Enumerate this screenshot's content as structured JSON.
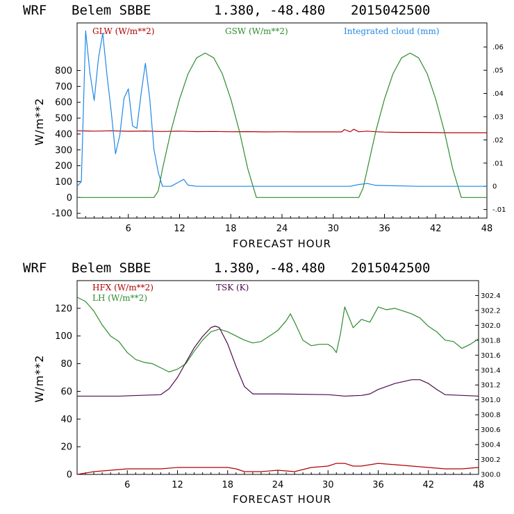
{
  "chart_data": [
    {
      "type": "line",
      "header": {
        "model": "WRF",
        "station": "Belem SBBE",
        "coords": "1.380, -48.480",
        "date": "2015042500"
      },
      "xlabel": "FORECAST HOUR",
      "ylabel": "W/m**2",
      "xlim": [
        0,
        48
      ],
      "ylim": [
        -130,
        1100
      ],
      "xticks": [
        "6",
        "12",
        "18",
        "24",
        "30",
        "36",
        "42",
        "48"
      ],
      "yticks": [
        "-100",
        "0",
        "100",
        "200",
        "300",
        "400",
        "500",
        "600",
        "700",
        "800"
      ],
      "y2lim": [
        -0.0137,
        0.0704
      ],
      "y2ticks": [
        "-.01",
        "0",
        ".01",
        ".02",
        ".03",
        ".04",
        ".05",
        ".06"
      ],
      "legend": [
        "GLW (W/m**2)",
        "GSW (W/m**2)",
        "Integrated cloud (mm)"
      ],
      "series": [
        {
          "name": "GLW (W/m**2)",
          "color": "#b00000",
          "x": [
            0,
            2,
            4,
            6,
            8,
            10,
            12,
            14,
            16,
            18,
            20,
            22,
            24,
            26,
            28,
            30,
            31,
            31.3,
            32,
            32.4,
            33,
            34,
            35,
            36,
            38,
            40,
            42,
            44,
            46,
            48
          ],
          "y": [
            420,
            418,
            420,
            417,
            419,
            416,
            418,
            415,
            416,
            414,
            415,
            413,
            414,
            413,
            413,
            413,
            413,
            428,
            414,
            430,
            414,
            418,
            414,
            412,
            410,
            410,
            409,
            408,
            408,
            408
          ]
        },
        {
          "name": "GSW (W/m**2)",
          "color": "#2e8b2e",
          "x": [
            0,
            9,
            9.5,
            10,
            11,
            12,
            13,
            14,
            15,
            16,
            17,
            18,
            19,
            20,
            21,
            22,
            30,
            33,
            33.5,
            34,
            35,
            36,
            37,
            38,
            39,
            40,
            41,
            42,
            43,
            44,
            45,
            48
          ],
          "y": [
            0,
            0,
            40,
            180,
            420,
            620,
            780,
            880,
            910,
            880,
            780,
            620,
            420,
            180,
            0,
            0,
            0,
            0,
            60,
            180,
            420,
            620,
            780,
            880,
            910,
            880,
            780,
            620,
            420,
            180,
            0,
            0
          ]
        },
        {
          "name": "Integrated cloud (mm)",
          "color": "#1e88e5",
          "axis": "right",
          "x": [
            0,
            0.5,
            1,
            1.5,
            2,
            2.5,
            3,
            3.5,
            4,
            4.5,
            5,
            5.5,
            6,
            6.5,
            7,
            7.5,
            8,
            8.5,
            9,
            9.5,
            10,
            11,
            12,
            12.5,
            13,
            14,
            20,
            32,
            33,
            34,
            35,
            40,
            48
          ],
          "y": [
            0,
            0.002,
            0.067,
            0.049,
            0.037,
            0.055,
            0.066,
            0.048,
            0.032,
            0.014,
            0.022,
            0.038,
            0.042,
            0.026,
            0.025,
            0.04,
            0.053,
            0.038,
            0.016,
            0.006,
            0,
            0,
            0.002,
            0.003,
            0.0005,
            0,
            0,
            0,
            0.0008,
            0.0012,
            0.0004,
            0,
            0
          ]
        }
      ]
    },
    {
      "type": "line",
      "header": {
        "model": "WRF",
        "station": "Belem SBBE",
        "coords": "1.380, -48.480",
        "date": "2015042500"
      },
      "xlabel": "FORECAST HOUR",
      "ylabel": "W/m**2",
      "xlim": [
        0,
        48
      ],
      "ylim": [
        0,
        140
      ],
      "xticks": [
        "6",
        "12",
        "18",
        "24",
        "30",
        "36",
        "42",
        "48"
      ],
      "yticks": [
        "0",
        "20",
        "40",
        "60",
        "80",
        "100",
        "120"
      ],
      "y2lim": [
        300.0,
        302.6
      ],
      "y2ticks": [
        "300.0",
        "300.2",
        "300.4",
        "300.6",
        "300.8",
        "301.0",
        "301.2",
        "301.4",
        "301.6",
        "301.8",
        "302.0",
        "302.2",
        "302.4"
      ],
      "legend": [
        "HFX (W/m**2)",
        "LH (W/m**2)",
        "TSK (K)"
      ],
      "series": [
        {
          "name": "HFX (W/m**2)",
          "color": "#b00000",
          "x": [
            0,
            2,
            4,
            6,
            8,
            10,
            12,
            14,
            16,
            18,
            19,
            20,
            22,
            24,
            26,
            28,
            30,
            31,
            32,
            33,
            34,
            36,
            38,
            40,
            42,
            44,
            46,
            48
          ],
          "y": [
            0,
            2,
            3,
            4,
            4,
            4,
            5,
            5,
            5,
            5,
            4,
            2,
            2,
            3,
            2,
            5,
            6,
            8,
            8,
            6,
            6,
            8,
            7,
            6,
            5,
            4,
            4,
            5
          ]
        },
        {
          "name": "LH (W/m**2)",
          "color": "#2e8b2e",
          "x": [
            0,
            1,
            2,
            3,
            4,
            5,
            6,
            7,
            8,
            9,
            10,
            11,
            12,
            13,
            14,
            15,
            16,
            17,
            18,
            19,
            20,
            21,
            22,
            23,
            24,
            25,
            25.5,
            26,
            27,
            28,
            29,
            30,
            30.5,
            31,
            31.5,
            32,
            33,
            34,
            35,
            36,
            37,
            38,
            39,
            40,
            41,
            42,
            43,
            44,
            45,
            46,
            47,
            48
          ],
          "y": [
            128,
            125,
            118,
            108,
            100,
            96,
            88,
            83,
            81,
            80,
            77,
            74,
            76,
            80,
            89,
            97,
            103,
            105,
            103,
            100,
            97,
            95,
            96,
            100,
            104,
            111,
            116,
            110,
            97,
            93,
            94,
            94,
            92,
            88,
            102,
            121,
            106,
            112,
            110,
            121,
            119,
            120,
            118,
            116,
            113,
            107,
            103,
            97,
            96,
            91,
            94,
            98
          ]
        },
        {
          "name": "TSK (K)",
          "color": "#4b0a4b",
          "axis": "right",
          "x": [
            0,
            5,
            10,
            11,
            12,
            13,
            14,
            15,
            16,
            16.5,
            17,
            18,
            19,
            20,
            21,
            24,
            30,
            32,
            34,
            35,
            36,
            38,
            40,
            41,
            42,
            43,
            44,
            48
          ],
          "y": [
            301.05,
            301.05,
            301.07,
            301.15,
            301.3,
            301.5,
            301.7,
            301.85,
            301.97,
            301.99,
            301.97,
            301.75,
            301.45,
            301.18,
            301.08,
            301.08,
            301.07,
            301.05,
            301.06,
            301.08,
            301.14,
            301.22,
            301.27,
            301.27,
            301.22,
            301.14,
            301.07,
            301.05
          ]
        }
      ]
    }
  ]
}
